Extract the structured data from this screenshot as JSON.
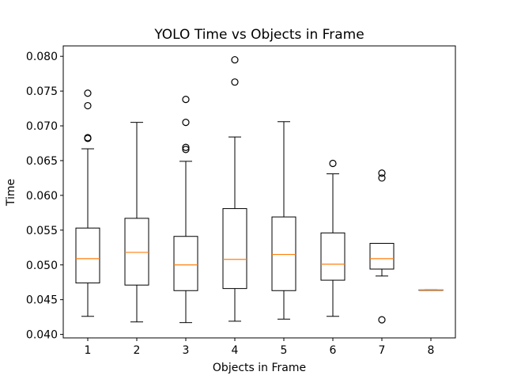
{
  "chart_data": {
    "type": "box",
    "title": "YOLO Time vs Objects in Frame",
    "xlabel": "Objects in Frame",
    "ylabel": "Time",
    "ylim": [
      0.0395,
      0.0815
    ],
    "xlim": [
      0.5,
      8.5
    ],
    "yticks": [
      0.04,
      0.045,
      0.05,
      0.055,
      0.06,
      0.065,
      0.07,
      0.075,
      0.08
    ],
    "ytick_labels": [
      "0.040",
      "0.045",
      "0.050",
      "0.055",
      "0.060",
      "0.065",
      "0.070",
      "0.075",
      "0.080"
    ],
    "categories": [
      "1",
      "2",
      "3",
      "4",
      "5",
      "6",
      "7",
      "8"
    ],
    "grid": false,
    "colors": {
      "box": "#000000",
      "median": "#ff7f0e",
      "flier": "#000000"
    },
    "boxes": [
      {
        "category": "1",
        "whisker_low": 0.0426,
        "q1": 0.0474,
        "median": 0.0509,
        "q3": 0.0553,
        "whisker_high": 0.0667,
        "outliers": [
          0.0682,
          0.0683,
          0.0729,
          0.0747
        ]
      },
      {
        "category": "2",
        "whisker_low": 0.0418,
        "q1": 0.0471,
        "median": 0.0518,
        "q3": 0.0567,
        "whisker_high": 0.0705,
        "outliers": []
      },
      {
        "category": "3",
        "whisker_low": 0.0417,
        "q1": 0.0463,
        "median": 0.05,
        "q3": 0.0541,
        "whisker_high": 0.0649,
        "outliers": [
          0.0666,
          0.0669,
          0.0705,
          0.0738
        ]
      },
      {
        "category": "4",
        "whisker_low": 0.0419,
        "q1": 0.0466,
        "median": 0.0508,
        "q3": 0.0581,
        "whisker_high": 0.0684,
        "outliers": [
          0.0763,
          0.0795
        ]
      },
      {
        "category": "5",
        "whisker_low": 0.0422,
        "q1": 0.0463,
        "median": 0.0515,
        "q3": 0.0569,
        "whisker_high": 0.0706,
        "outliers": []
      },
      {
        "category": "6",
        "whisker_low": 0.0426,
        "q1": 0.0478,
        "median": 0.0501,
        "q3": 0.0546,
        "whisker_high": 0.0631,
        "outliers": [
          0.0646
        ]
      },
      {
        "category": "7",
        "whisker_low": 0.0484,
        "q1": 0.0494,
        "median": 0.0509,
        "q3": 0.0531,
        "whisker_high": 0.0531,
        "outliers": [
          0.0421,
          0.0625,
          0.0632
        ]
      },
      {
        "category": "8",
        "whisker_low": 0.0464,
        "q1": 0.0464,
        "median": 0.0464,
        "q3": 0.0464,
        "whisker_high": 0.0464,
        "outliers": []
      }
    ]
  }
}
